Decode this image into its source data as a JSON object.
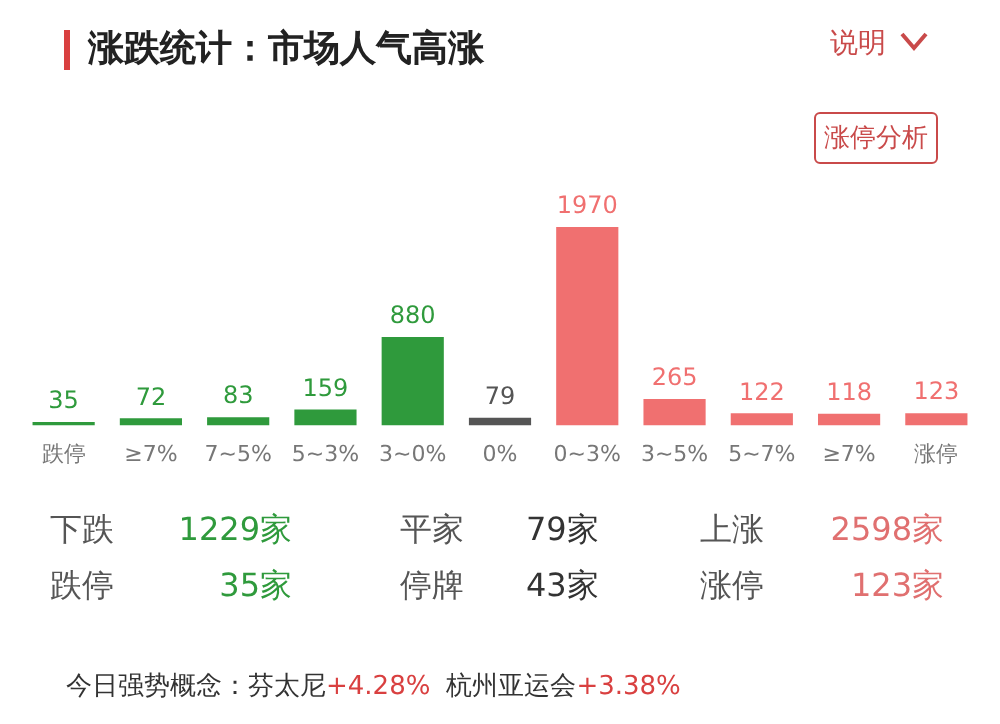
{
  "chart_data": {
    "type": "bar",
    "title": "涨跌统计：市场人气高涨",
    "categories": [
      "跌停",
      "≥7%",
      "7~5%",
      "5~3%",
      "3~0%",
      "0%",
      "0~3%",
      "3~5%",
      "5~7%",
      "≥7%",
      "涨停"
    ],
    "values": [
      35,
      72,
      83,
      159,
      880,
      79,
      1970,
      265,
      122,
      118,
      123
    ],
    "colors": [
      "#2f9a3c",
      "#2f9a3c",
      "#2f9a3c",
      "#2f9a3c",
      "#2f9a3c",
      "#555555",
      "#f07070",
      "#f07070",
      "#f07070",
      "#f07070",
      "#f07070"
    ],
    "data_labels": true,
    "grid": false,
    "legend": false,
    "annotations": [
      "说明",
      "涨停分析",
      "下跌",
      "1229家",
      "平家",
      "79家",
      "上涨",
      "2598家",
      "跌停",
      "35家",
      "停牌",
      "43家",
      "涨停",
      "123家",
      "今日强势概念：",
      "芬太尼",
      "+4.28%",
      "杭州亚运会",
      "+3.38%"
    ]
  }
}
